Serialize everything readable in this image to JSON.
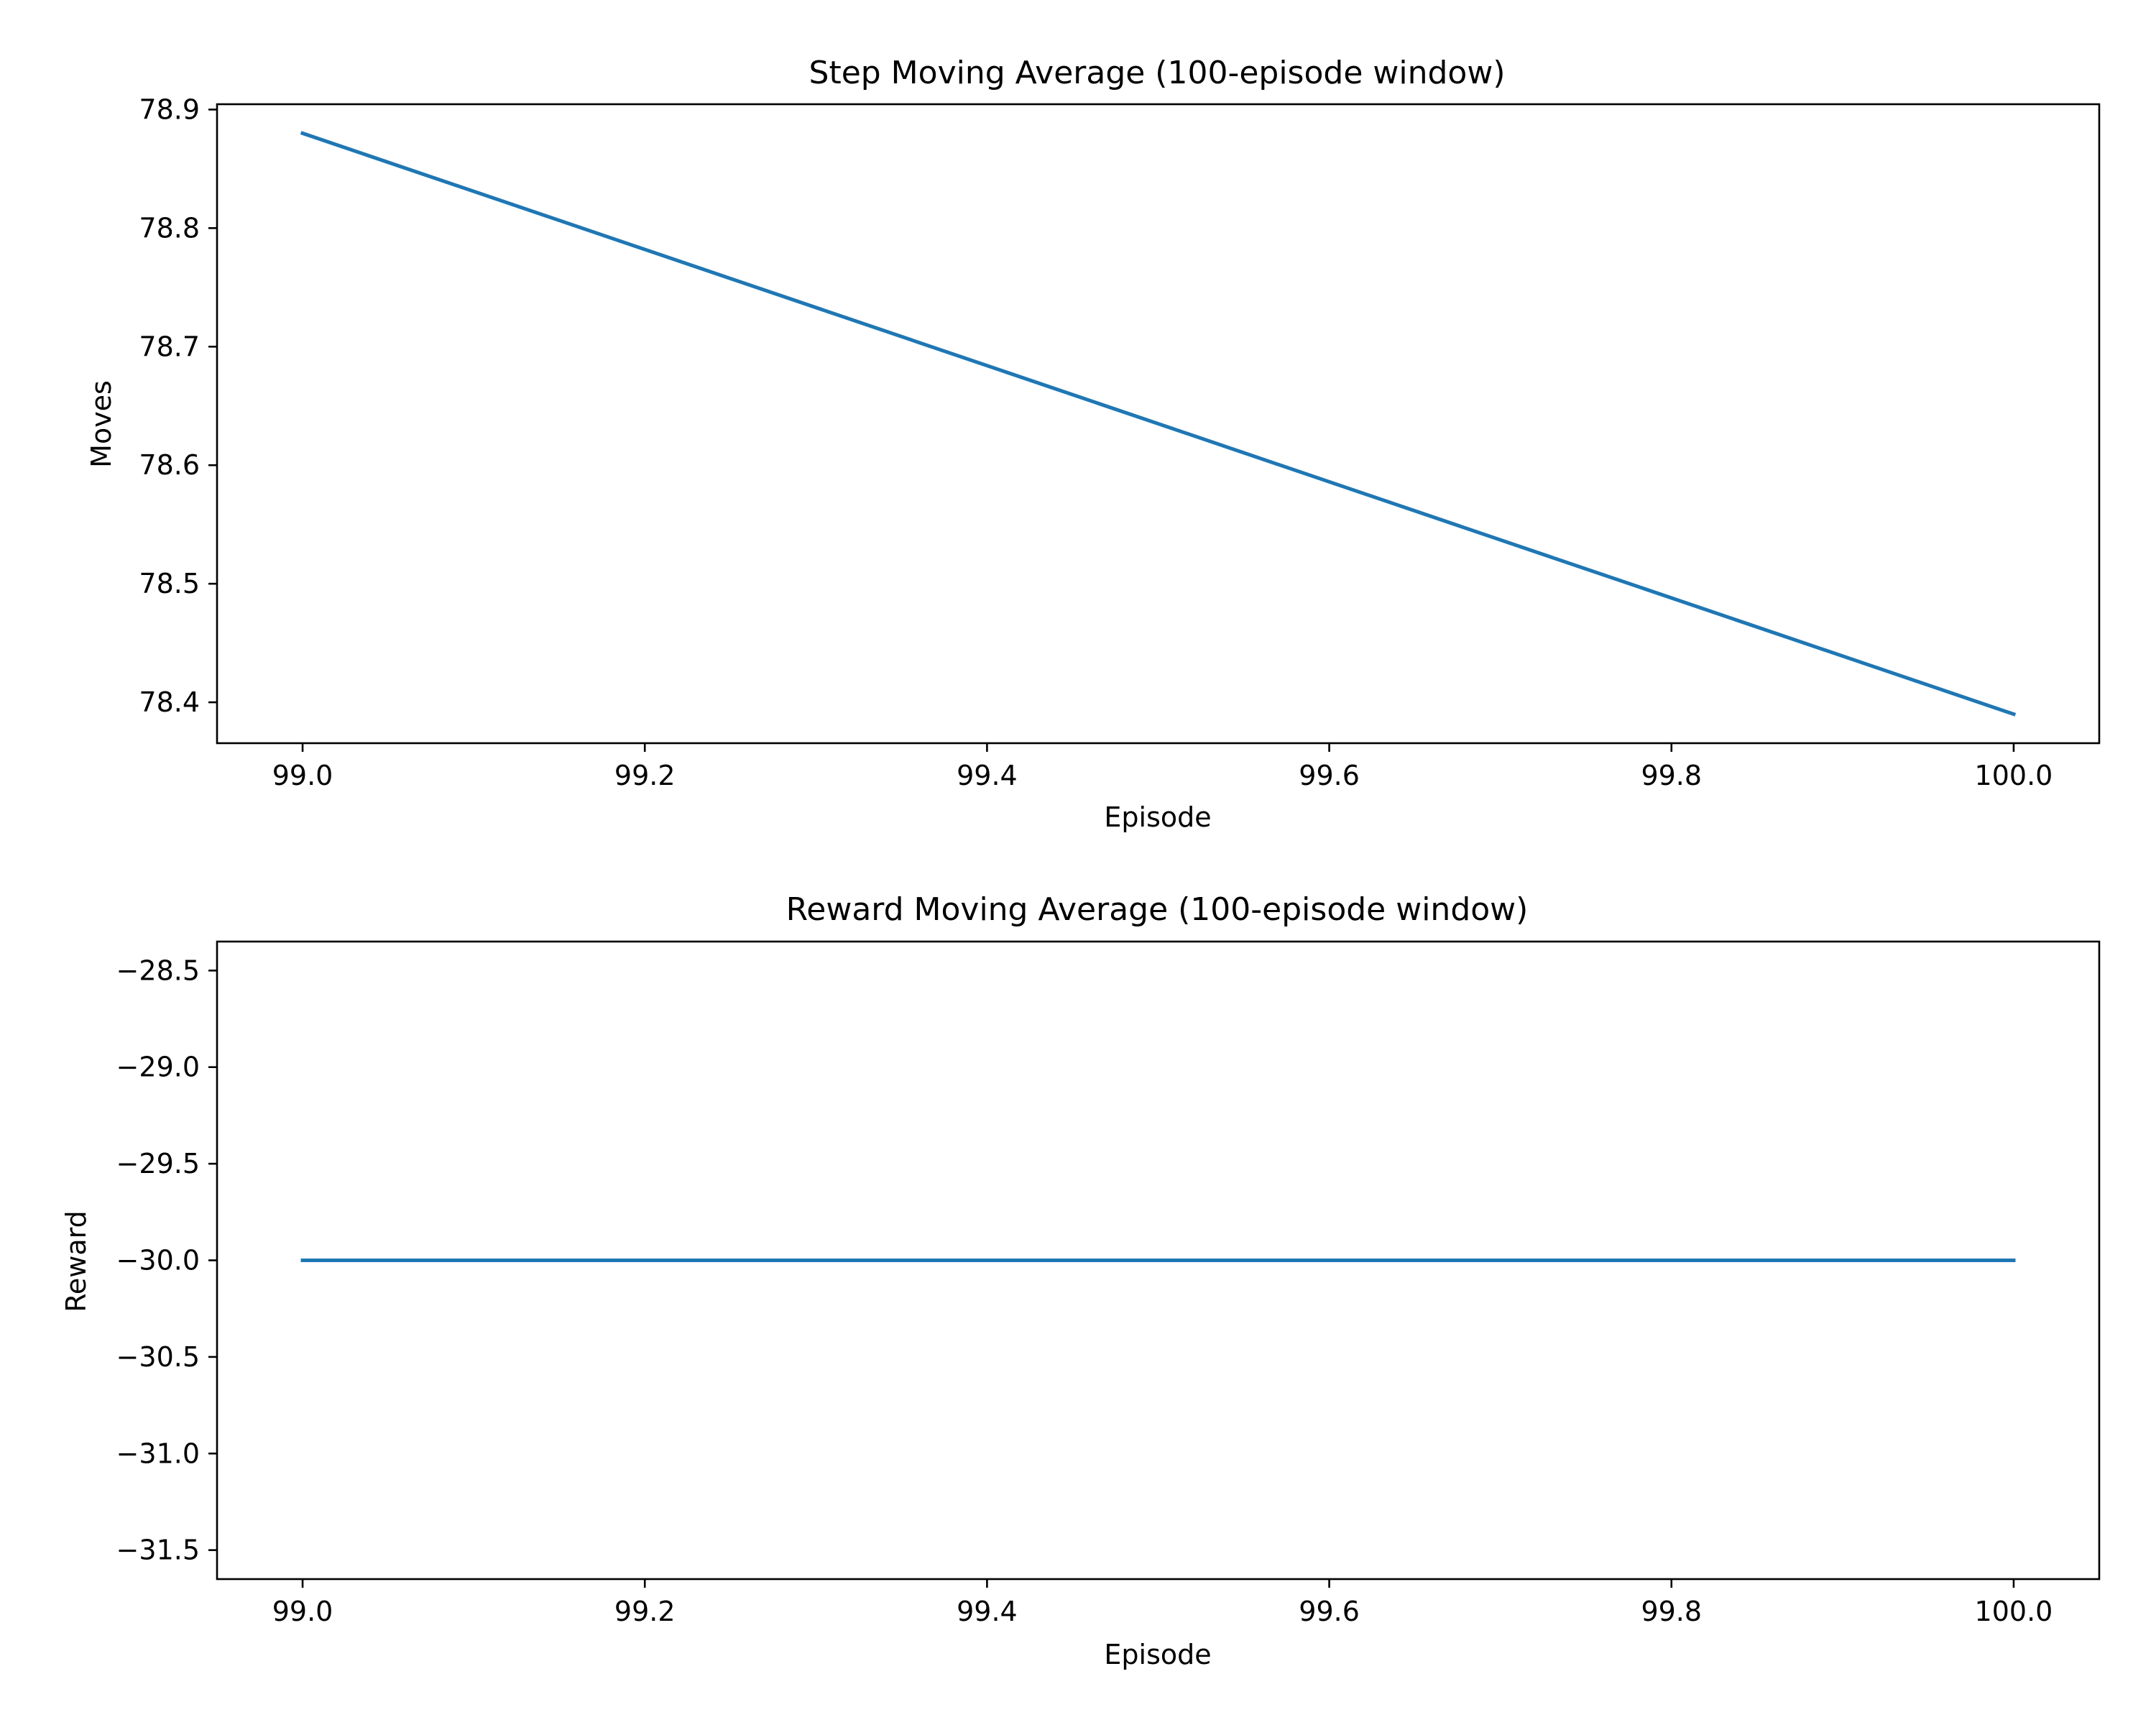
{
  "chart_data": [
    {
      "type": "line",
      "title": "Step Moving Average (100-episode window)",
      "xlabel": "Episode",
      "ylabel": "Moves",
      "xlim": [
        98.95,
        100.05
      ],
      "ylim": [
        78.3655,
        78.9045
      ],
      "xticks": [
        99.0,
        99.2,
        99.4,
        99.6,
        99.8,
        100.0
      ],
      "xtick_labels": [
        "99.0",
        "99.2",
        "99.4",
        "99.6",
        "99.8",
        "100.0"
      ],
      "yticks": [
        78.4,
        78.5,
        78.6,
        78.7,
        78.8,
        78.9
      ],
      "ytick_labels": [
        "78.4",
        "78.5",
        "78.6",
        "78.7",
        "78.8",
        "78.9"
      ],
      "grid": false,
      "series": [
        {
          "color": "#1f77b4",
          "x": [
            99,
            100
          ],
          "y": [
            78.88,
            78.39
          ]
        }
      ]
    },
    {
      "type": "line",
      "title": "Reward Moving Average (100-episode window)",
      "xlabel": "Episode",
      "ylabel": "Reward",
      "xlim": [
        98.95,
        100.05
      ],
      "ylim": [
        -31.65,
        -28.35
      ],
      "xticks": [
        99.0,
        99.2,
        99.4,
        99.6,
        99.8,
        100.0
      ],
      "xtick_labels": [
        "99.0",
        "99.2",
        "99.4",
        "99.6",
        "99.8",
        "100.0"
      ],
      "yticks": [
        -28.5,
        -29.0,
        -29.5,
        -30.0,
        -30.5,
        -31.0,
        -31.5
      ],
      "ytick_labels": [
        "−28.5",
        "−29.0",
        "−29.5",
        "−30.0",
        "−30.5",
        "−31.0",
        "−31.5"
      ],
      "grid": false,
      "series": [
        {
          "color": "#1f77b4",
          "x": [
            99,
            100
          ],
          "y": [
            -30.0,
            -30.0
          ]
        }
      ]
    }
  ]
}
